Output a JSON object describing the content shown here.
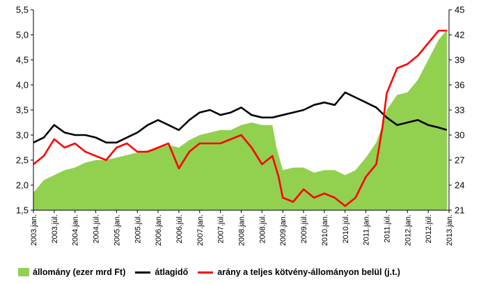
{
  "chart_data": {
    "type": "area+line",
    "title": "",
    "colors": {
      "allomany": "#92d050",
      "atlagido": "#000000",
      "arany": "#ff0000",
      "axis": "#000000"
    },
    "y_left": {
      "ylim": [
        1.5,
        5.5
      ],
      "ticks": [
        "1,5",
        "2,0",
        "2,5",
        "3,0",
        "3,5",
        "4,0",
        "4,5",
        "5,0",
        "5,5"
      ]
    },
    "y_right": {
      "ylim": [
        21,
        45
      ],
      "ticks": [
        "21",
        "24",
        "27",
        "30",
        "33",
        "36",
        "39",
        "42",
        "45"
      ]
    },
    "x_range": [
      2003.0,
      2013.0
    ],
    "x_ticks": [
      "2003.jan.",
      "2003.júl.",
      "2004.jan.",
      "2004.júl.",
      "2005.jan.",
      "2005.júl.",
      "2006.jan.",
      "2006.júl.",
      "2007.jan.",
      "2007.júl.",
      "2008.jan.",
      "2008.júl.",
      "2009.jan.",
      "2009.júl.",
      "2010.jan.",
      "2010.júl.",
      "2011.jan.",
      "2011.júl.",
      "2012.jan.",
      "2012.júl.",
      "2013.jan."
    ],
    "series": [
      {
        "name": "állomány (ezer mrd Ft)",
        "kind": "area",
        "axis": "left",
        "points": [
          [
            2003.0,
            1.85
          ],
          [
            2003.25,
            2.1
          ],
          [
            2003.5,
            2.2
          ],
          [
            2003.75,
            2.3
          ],
          [
            2004.0,
            2.35
          ],
          [
            2004.25,
            2.45
          ],
          [
            2004.5,
            2.5
          ],
          [
            2004.75,
            2.5
          ],
          [
            2005.0,
            2.55
          ],
          [
            2005.25,
            2.6
          ],
          [
            2005.5,
            2.65
          ],
          [
            2005.75,
            2.7
          ],
          [
            2006.0,
            2.75
          ],
          [
            2006.25,
            2.8
          ],
          [
            2006.5,
            2.75
          ],
          [
            2006.75,
            2.9
          ],
          [
            2007.0,
            3.0
          ],
          [
            2007.25,
            3.05
          ],
          [
            2007.5,
            3.1
          ],
          [
            2007.75,
            3.1
          ],
          [
            2008.0,
            3.2
          ],
          [
            2008.25,
            3.25
          ],
          [
            2008.5,
            3.2
          ],
          [
            2008.75,
            3.2
          ],
          [
            2008.85,
            2.75
          ],
          [
            2009.0,
            2.3
          ],
          [
            2009.25,
            2.35
          ],
          [
            2009.5,
            2.35
          ],
          [
            2009.75,
            2.25
          ],
          [
            2010.0,
            2.3
          ],
          [
            2010.25,
            2.3
          ],
          [
            2010.5,
            2.2
          ],
          [
            2010.75,
            2.3
          ],
          [
            2011.0,
            2.55
          ],
          [
            2011.25,
            2.85
          ],
          [
            2011.4,
            3.2
          ],
          [
            2011.5,
            3.5
          ],
          [
            2011.75,
            3.8
          ],
          [
            2012.0,
            3.85
          ],
          [
            2012.25,
            4.1
          ],
          [
            2012.5,
            4.5
          ],
          [
            2012.75,
            4.9
          ],
          [
            2012.95,
            5.1
          ]
        ]
      },
      {
        "name": "átlagidő",
        "kind": "line",
        "axis": "left",
        "points": [
          [
            2003.0,
            2.85
          ],
          [
            2003.25,
            2.95
          ],
          [
            2003.5,
            3.2
          ],
          [
            2003.75,
            3.05
          ],
          [
            2004.0,
            3.0
          ],
          [
            2004.25,
            3.0
          ],
          [
            2004.5,
            2.95
          ],
          [
            2004.75,
            2.85
          ],
          [
            2005.0,
            2.85
          ],
          [
            2005.25,
            2.95
          ],
          [
            2005.5,
            3.05
          ],
          [
            2005.75,
            3.2
          ],
          [
            2006.0,
            3.3
          ],
          [
            2006.25,
            3.2
          ],
          [
            2006.5,
            3.1
          ],
          [
            2006.75,
            3.3
          ],
          [
            2007.0,
            3.45
          ],
          [
            2007.25,
            3.5
          ],
          [
            2007.5,
            3.4
          ],
          [
            2007.75,
            3.45
          ],
          [
            2008.0,
            3.55
          ],
          [
            2008.25,
            3.4
          ],
          [
            2008.5,
            3.35
          ],
          [
            2008.75,
            3.35
          ],
          [
            2009.0,
            3.4
          ],
          [
            2009.25,
            3.45
          ],
          [
            2009.5,
            3.5
          ],
          [
            2009.75,
            3.6
          ],
          [
            2010.0,
            3.65
          ],
          [
            2010.25,
            3.6
          ],
          [
            2010.5,
            3.85
          ],
          [
            2010.75,
            3.75
          ],
          [
            2011.0,
            3.65
          ],
          [
            2011.25,
            3.55
          ],
          [
            2011.5,
            3.35
          ],
          [
            2011.75,
            3.2
          ],
          [
            2012.0,
            3.25
          ],
          [
            2012.25,
            3.3
          ],
          [
            2012.5,
            3.2
          ],
          [
            2012.75,
            3.15
          ],
          [
            2012.95,
            3.1
          ]
        ]
      },
      {
        "name": "arány a teljes kötvény-állományon belül (j.t.)",
        "kind": "line",
        "axis": "right",
        "points": [
          [
            2003.0,
            26.5
          ],
          [
            2003.25,
            27.5
          ],
          [
            2003.5,
            29.5
          ],
          [
            2003.75,
            28.5
          ],
          [
            2004.0,
            29.0
          ],
          [
            2004.25,
            28.0
          ],
          [
            2004.5,
            27.5
          ],
          [
            2004.75,
            27.0
          ],
          [
            2005.0,
            28.5
          ],
          [
            2005.25,
            29.0
          ],
          [
            2005.5,
            28.0
          ],
          [
            2005.75,
            28.0
          ],
          [
            2006.0,
            28.5
          ],
          [
            2006.25,
            29.0
          ],
          [
            2006.5,
            26.0
          ],
          [
            2006.75,
            28.0
          ],
          [
            2007.0,
            29.0
          ],
          [
            2007.25,
            29.0
          ],
          [
            2007.5,
            29.0
          ],
          [
            2007.75,
            29.5
          ],
          [
            2008.0,
            30.0
          ],
          [
            2008.25,
            28.5
          ],
          [
            2008.5,
            26.5
          ],
          [
            2008.75,
            27.5
          ],
          [
            2008.9,
            25.0
          ],
          [
            2009.0,
            22.5
          ],
          [
            2009.25,
            22.0
          ],
          [
            2009.5,
            23.5
          ],
          [
            2009.75,
            22.5
          ],
          [
            2010.0,
            23.0
          ],
          [
            2010.25,
            22.5
          ],
          [
            2010.5,
            21.5
          ],
          [
            2010.75,
            22.5
          ],
          [
            2011.0,
            25.0
          ],
          [
            2011.25,
            26.5
          ],
          [
            2011.4,
            31.0
          ],
          [
            2011.5,
            35.0
          ],
          [
            2011.75,
            38.0
          ],
          [
            2012.0,
            38.5
          ],
          [
            2012.25,
            39.5
          ],
          [
            2012.5,
            41.0
          ],
          [
            2012.75,
            42.5
          ],
          [
            2012.95,
            42.5
          ]
        ]
      }
    ],
    "legend": [
      "állomány (ezer mrd Ft)",
      "átlagidő",
      "arány a teljes kötvény-állományon belül (j.t.)"
    ]
  }
}
